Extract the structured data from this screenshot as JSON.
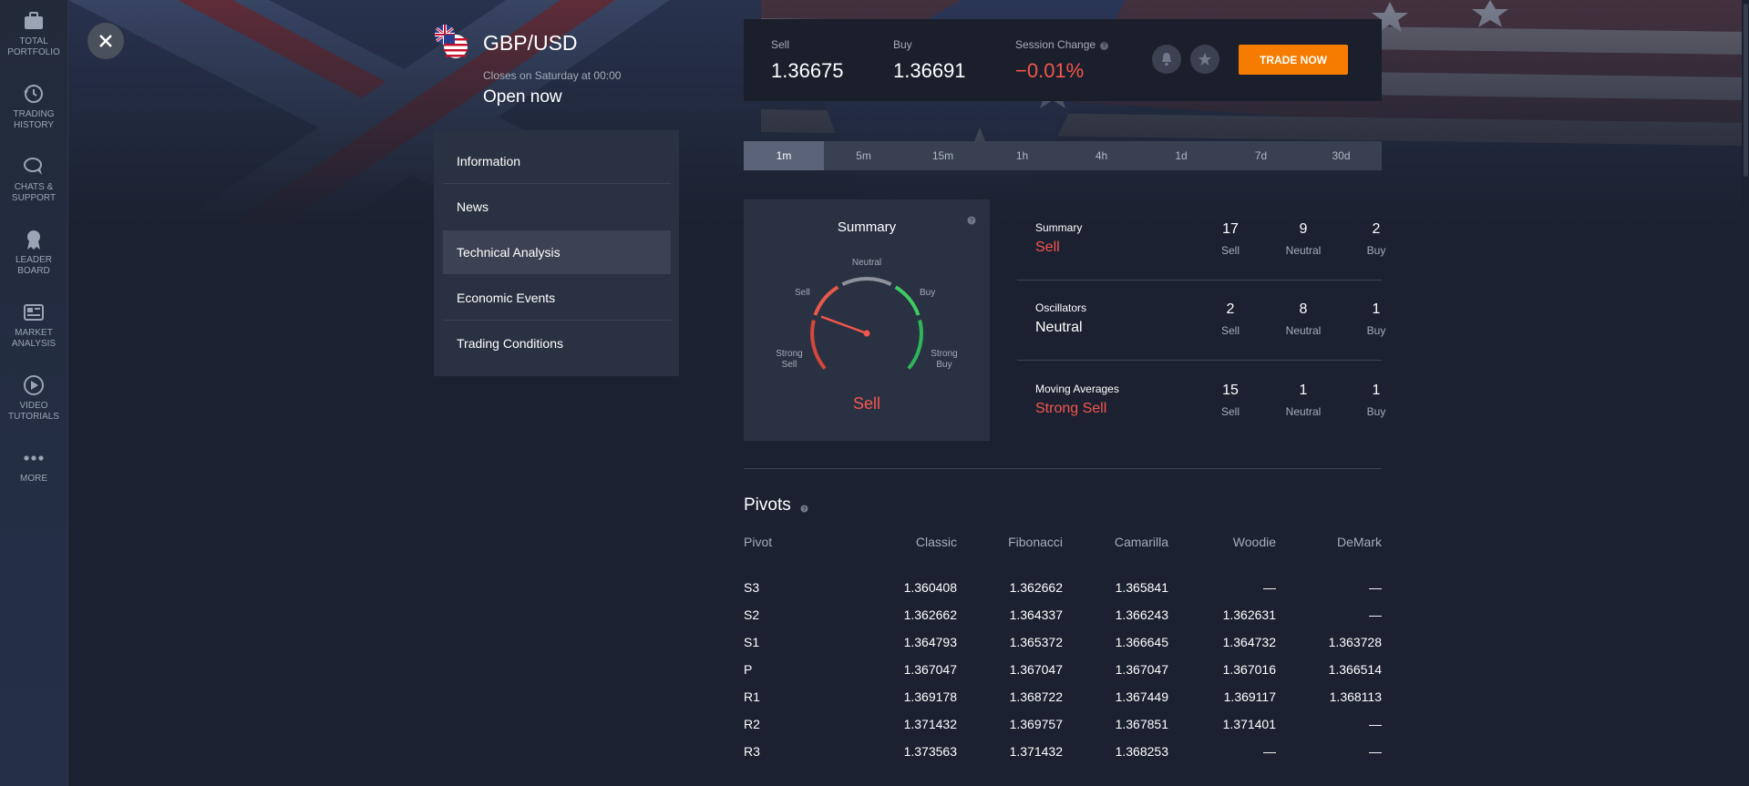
{
  "sidebar": {
    "items": [
      {
        "label": "TOTAL\nPORTFOLIO",
        "icon": "briefcase-icon"
      },
      {
        "label": "TRADING\nHISTORY",
        "icon": "history-icon"
      },
      {
        "label": "CHATS &\nSUPPORT",
        "icon": "chat-icon"
      },
      {
        "label": "LEADER\nBOARD",
        "icon": "award-icon"
      },
      {
        "label": "MARKET\nANALYSIS",
        "icon": "newspaper-icon"
      },
      {
        "label": "VIDEO\nTUTORIALS",
        "icon": "play-icon"
      },
      {
        "label": "MORE",
        "icon": "more-dots-icon"
      }
    ]
  },
  "asset": {
    "name": "GBP/USD",
    "closes": "Closes on Saturday at 00:00",
    "status": "Open now"
  },
  "menu": {
    "items": [
      "Information",
      "News",
      "Technical Analysis",
      "Economic Events",
      "Trading Conditions"
    ],
    "active": "Technical Analysis"
  },
  "quote": {
    "sell_label": "Sell",
    "sell_value": "1.36675",
    "buy_label": "Buy",
    "buy_value": "1.36691",
    "change_label": "Session Change",
    "change_value": "−0.01%",
    "trade_label": "TRADE NOW"
  },
  "timeframes": {
    "items": [
      "1m",
      "5m",
      "15m",
      "1h",
      "4h",
      "1d",
      "7d",
      "30d"
    ],
    "active": "1m"
  },
  "gauge": {
    "title": "Summary",
    "labels": {
      "neutral": "Neutral",
      "sell": "Sell",
      "buy": "Buy",
      "strong_sell": "Strong\nSell",
      "strong_buy": "Strong\nBuy"
    },
    "result": "Sell"
  },
  "summary": {
    "rows": [
      {
        "name": "Summary",
        "verdict": "Sell",
        "verdict_color": "#f5564d",
        "sell": "17",
        "neutral": "9",
        "buy": "2"
      },
      {
        "name": "Oscillators",
        "verdict": "Neutral",
        "verdict_color": "#ffffff",
        "sell": "2",
        "neutral": "8",
        "buy": "1"
      },
      {
        "name": "Moving Averages",
        "verdict": "Strong Sell",
        "verdict_color": "#f5564d",
        "sell": "15",
        "neutral": "1",
        "buy": "1"
      }
    ],
    "col_labels": {
      "sell": "Sell",
      "neutral": "Neutral",
      "buy": "Buy"
    }
  },
  "pivots": {
    "title": "Pivots",
    "headers": [
      "Pivot",
      "Classic",
      "Fibonacci",
      "Camarilla",
      "Woodie",
      "DeMark"
    ],
    "rows": [
      [
        "S3",
        "1.360408",
        "1.362662",
        "1.365841",
        "—",
        "—"
      ],
      [
        "S2",
        "1.362662",
        "1.364337",
        "1.366243",
        "1.362631",
        "—"
      ],
      [
        "S1",
        "1.364793",
        "1.365372",
        "1.366645",
        "1.364732",
        "1.363728"
      ],
      [
        "P",
        "1.367047",
        "1.367047",
        "1.367047",
        "1.367016",
        "1.366514"
      ],
      [
        "R1",
        "1.369178",
        "1.368722",
        "1.367449",
        "1.369117",
        "1.368113"
      ],
      [
        "R2",
        "1.371432",
        "1.369757",
        "1.367851",
        "1.371401",
        "—"
      ],
      [
        "R3",
        "1.373563",
        "1.371432",
        "1.368253",
        "—",
        "—"
      ]
    ]
  },
  "colors": {
    "accent": "#f57c00",
    "negative": "#f5564d",
    "positive": "#2fb65a",
    "background": "#1b2130",
    "panel": "#2a3142"
  }
}
